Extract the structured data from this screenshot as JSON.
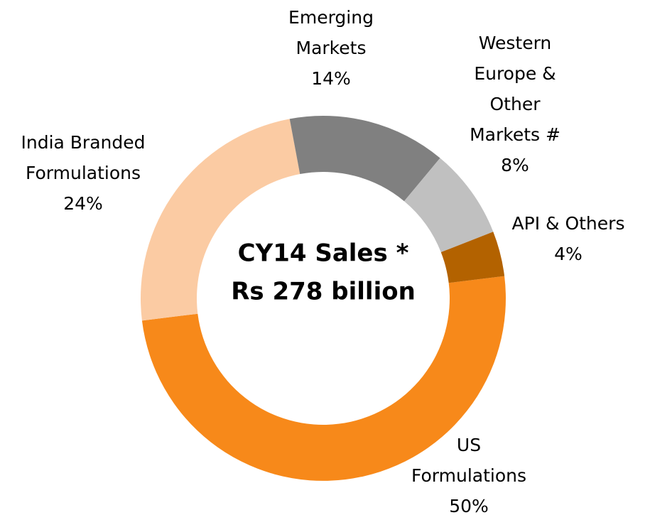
{
  "chart_data": {
    "type": "donut",
    "title": [
      "CY14 Sales *",
      "Rs 278 billion"
    ],
    "labels": [
      [
        "US",
        "Formulations"
      ],
      [
        "India Branded",
        "Formulations"
      ],
      [
        "Emerging",
        "Markets"
      ],
      [
        "Western",
        "Europe &",
        "Other",
        "Markets #"
      ],
      [
        "API & Others"
      ]
    ],
    "values": [
      50,
      24,
      14,
      8,
      4
    ],
    "value_labels": [
      "50%",
      "24%",
      "14%",
      "8%",
      "4%"
    ],
    "colors": [
      "#f7891a",
      "#fbcba3",
      "#808080",
      "#c0c0c0",
      "#b36200"
    ]
  }
}
